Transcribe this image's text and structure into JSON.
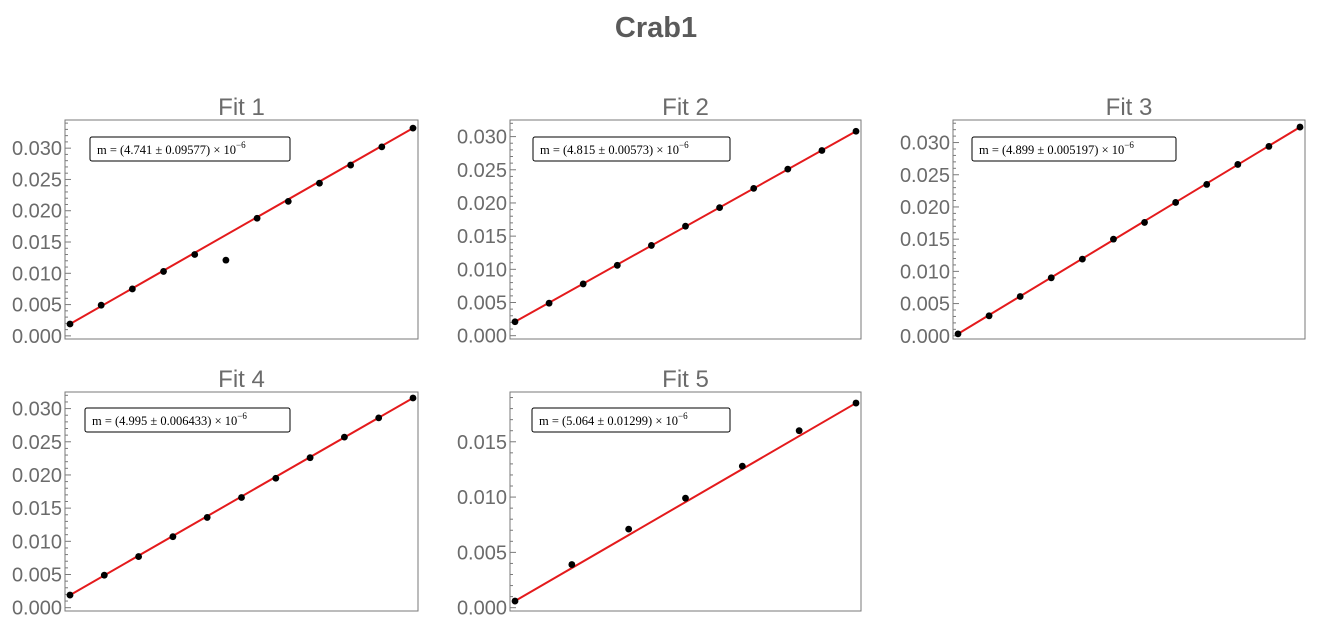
{
  "title": "Crab1",
  "colors": {
    "fit_line": "#e41a1c",
    "points": "#000000",
    "text": "#6b6b6b",
    "frame": "#7a7a7a"
  },
  "chart_data": [
    {
      "type": "scatter",
      "title": "Fit 1",
      "annotation": {
        "text": "m = (4.741 ± 0.09577) × 10",
        "exponent": "−6"
      },
      "ylim": [
        -0.0005,
        0.0345
      ],
      "yticks": [
        0.0,
        0.005,
        0.01,
        0.015,
        0.02,
        0.025,
        0.03
      ],
      "ytick_labels": [
        "0.000",
        "0.005",
        "0.010",
        "0.015",
        "0.020",
        "0.025",
        "0.030"
      ],
      "x": [
        1,
        2,
        3,
        4,
        5,
        6,
        7,
        8,
        9,
        10,
        11,
        12
      ],
      "y": [
        0.0019,
        0.0049,
        0.0075,
        0.0103,
        0.013,
        0.0121,
        0.0188,
        0.0215,
        0.0244,
        0.0273,
        0.0302,
        0.0332
      ],
      "fit": {
        "x": [
          1,
          12
        ],
        "y": [
          0.0019,
          0.0332
        ]
      }
    },
    {
      "type": "scatter",
      "title": "Fit 2",
      "annotation": {
        "text": "m = (4.815 ± 0.00573) × 10",
        "exponent": "−6"
      },
      "ylim": [
        -0.0005,
        0.0325
      ],
      "yticks": [
        0.0,
        0.005,
        0.01,
        0.015,
        0.02,
        0.025,
        0.03
      ],
      "ytick_labels": [
        "0.000",
        "0.005",
        "0.010",
        "0.015",
        "0.020",
        "0.025",
        "0.030"
      ],
      "x": [
        1,
        2,
        3,
        4,
        5,
        6,
        7,
        8,
        9,
        10,
        11
      ],
      "y": [
        0.0021,
        0.0049,
        0.0078,
        0.0106,
        0.0136,
        0.0165,
        0.0193,
        0.0222,
        0.0251,
        0.0279,
        0.0308
      ],
      "fit": {
        "x": [
          1,
          11
        ],
        "y": [
          0.0021,
          0.0308
        ]
      }
    },
    {
      "type": "scatter",
      "title": "Fit 3",
      "annotation": {
        "text": "m = (4.899 ± 0.005197) × 10",
        "exponent": "−6"
      },
      "ylim": [
        -0.0005,
        0.0335
      ],
      "yticks": [
        0.0,
        0.005,
        0.01,
        0.015,
        0.02,
        0.025,
        0.03
      ],
      "ytick_labels": [
        "0.000",
        "0.005",
        "0.010",
        "0.015",
        "0.020",
        "0.025",
        "0.030"
      ],
      "x": [
        1,
        2,
        3,
        4,
        5,
        6,
        7,
        8,
        9,
        10,
        11,
        12
      ],
      "y": [
        0.0003,
        0.0031,
        0.0061,
        0.009,
        0.0119,
        0.015,
        0.0176,
        0.0207,
        0.0235,
        0.0266,
        0.0294,
        0.0324
      ],
      "fit": {
        "x": [
          1,
          12
        ],
        "y": [
          0.0003,
          0.0324
        ]
      }
    },
    {
      "type": "scatter",
      "title": "Fit 4",
      "annotation": {
        "text": "m = (4.995 ± 0.006433) × 10",
        "exponent": "−6"
      },
      "ylim": [
        -0.0005,
        0.0325
      ],
      "yticks": [
        0.0,
        0.005,
        0.01,
        0.015,
        0.02,
        0.025,
        0.03
      ],
      "ytick_labels": [
        "0.000",
        "0.005",
        "0.010",
        "0.015",
        "0.020",
        "0.025",
        "0.030"
      ],
      "x": [
        1,
        2,
        3,
        4,
        5,
        6,
        7,
        8,
        9,
        10,
        11
      ],
      "y": [
        0.0019,
        0.0049,
        0.0077,
        0.0107,
        0.0136,
        0.0166,
        0.0195,
        0.0226,
        0.0257,
        0.0286,
        0.0316
      ],
      "fit": {
        "x": [
          1,
          11
        ],
        "y": [
          0.0019,
          0.0316
        ]
      }
    },
    {
      "type": "scatter",
      "title": "Fit 5",
      "annotation": {
        "text": "m = (5.064 ± 0.01299) × 10",
        "exponent": "−6"
      },
      "ylim": [
        -0.0003,
        0.0195
      ],
      "yticks": [
        0.0,
        0.005,
        0.01,
        0.015
      ],
      "ytick_labels": [
        "0.000",
        "0.005",
        "0.010",
        "0.015"
      ],
      "x": [
        1,
        2,
        3,
        4,
        5,
        6,
        7
      ],
      "y": [
        0.0006,
        0.0039,
        0.0071,
        0.0099,
        0.0128,
        0.016,
        0.0185
      ],
      "fit": {
        "x": [
          1,
          7
        ],
        "y": [
          0.0006,
          0.0185
        ]
      }
    }
  ]
}
